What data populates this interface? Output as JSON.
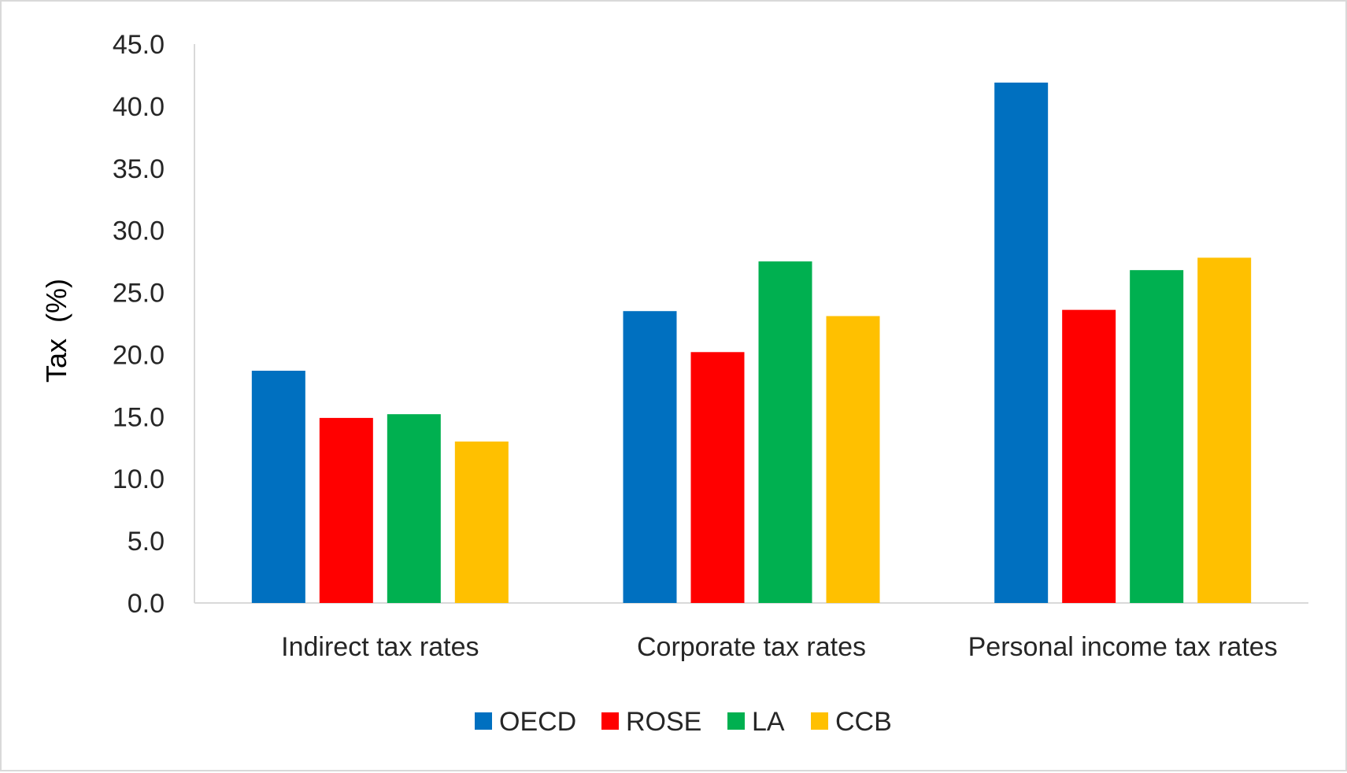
{
  "chart_data": {
    "type": "bar",
    "categories": [
      "Indirect tax rates",
      "Corporate tax rates",
      "Personal income tax rates"
    ],
    "series": [
      {
        "name": "OECD",
        "color": "#0070c0",
        "values": [
          18.7,
          23.5,
          41.9
        ]
      },
      {
        "name": "ROSE",
        "color": "#ff0000",
        "values": [
          14.9,
          20.2,
          23.6
        ]
      },
      {
        "name": "LA",
        "color": "#00b050",
        "values": [
          15.2,
          27.5,
          26.8
        ]
      },
      {
        "name": "CCB",
        "color": "#ffc000",
        "values": [
          13.0,
          23.1,
          27.8
        ]
      }
    ],
    "ylabel": "Tax  (%)",
    "ylim": [
      0,
      45
    ],
    "yticks": [
      "0.0",
      "5.0",
      "10.0",
      "15.0",
      "20.0",
      "25.0",
      "30.0",
      "35.0",
      "40.0",
      "45.0"
    ],
    "grid": false,
    "legend_position": "bottom"
  }
}
